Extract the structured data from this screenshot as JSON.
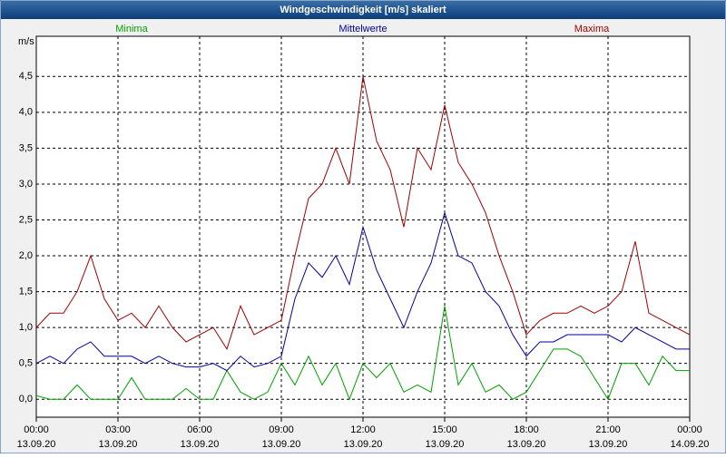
{
  "chart_data": {
    "type": "line",
    "title": "Windgeschwindigkeit [m/s] skaliert",
    "y_label": "m/s",
    "xlim": [
      0,
      24
    ],
    "ylim": [
      -0.25,
      5.06
    ],
    "xticks": [
      {
        "value": 0,
        "label": "00:00"
      },
      {
        "value": 3,
        "label": "03:00"
      },
      {
        "value": 6,
        "label": "06:00"
      },
      {
        "value": 9,
        "label": "09:00"
      },
      {
        "value": 12,
        "label": "12:00"
      },
      {
        "value": 15,
        "label": "15:00"
      },
      {
        "value": 18,
        "label": "18:00"
      },
      {
        "value": 21,
        "label": "21:00"
      },
      {
        "value": 24,
        "label": "00:00"
      }
    ],
    "xtick_dates": [
      "13.09.20",
      "13.09.20",
      "13.09.20",
      "13.09.20",
      "13.09.20",
      "13.09.20",
      "13.09.20",
      "13.09.20",
      "14.09.20"
    ],
    "yticks": [
      {
        "value": 0,
        "label": "0,0"
      },
      {
        "value": 0.5,
        "label": "0,5"
      },
      {
        "value": 1,
        "label": "1,0"
      },
      {
        "value": 1.5,
        "label": "1,5"
      },
      {
        "value": 2,
        "label": "2,0"
      },
      {
        "value": 2.5,
        "label": "2,5"
      },
      {
        "value": 3,
        "label": "3,0"
      },
      {
        "value": 3.5,
        "label": "3,5"
      },
      {
        "value": 4,
        "label": "4,0"
      },
      {
        "value": 4.5,
        "label": "4,5"
      }
    ],
    "grid": true,
    "x": [
      0,
      0.5,
      1,
      1.5,
      2,
      2.5,
      3,
      3.5,
      4,
      4.5,
      5,
      5.5,
      6,
      6.5,
      7,
      7.5,
      8,
      8.5,
      9,
      9.5,
      10,
      10.5,
      11,
      11.5,
      12,
      12.5,
      13,
      13.5,
      14,
      14.5,
      15,
      15.5,
      16,
      16.5,
      17,
      17.5,
      18,
      18.5,
      19,
      19.5,
      20,
      20.5,
      21,
      21.5,
      22,
      22.5,
      23,
      23.5,
      24
    ],
    "series": [
      {
        "name": "Minima",
        "color": "#00a000",
        "values": [
          0.05,
          0,
          0,
          0.2,
          0,
          0,
          0,
          0.3,
          0,
          0,
          0,
          0.15,
          0,
          0,
          0.4,
          0.1,
          0,
          0.1,
          0.5,
          0.2,
          0.6,
          0.2,
          0.5,
          0,
          0.5,
          0.3,
          0.5,
          0.1,
          0.2,
          0.1,
          1.3,
          0.2,
          0.5,
          0.1,
          0.2,
          0,
          0.1,
          0.4,
          0.7,
          0.7,
          0.6,
          0.3,
          0,
          0.5,
          0.5,
          0.2,
          0.6,
          0.4,
          0.4
        ]
      },
      {
        "name": "Mittelwerte",
        "color": "#0000a0",
        "values": [
          0.5,
          0.6,
          0.5,
          0.7,
          0.8,
          0.6,
          0.6,
          0.6,
          0.5,
          0.6,
          0.5,
          0.45,
          0.45,
          0.5,
          0.4,
          0.6,
          0.45,
          0.5,
          0.6,
          1.4,
          1.9,
          1.7,
          2.0,
          1.6,
          2.4,
          1.8,
          1.4,
          1.0,
          1.5,
          1.9,
          2.6,
          2.0,
          1.9,
          1.5,
          1.3,
          0.9,
          0.6,
          0.8,
          0.8,
          0.9,
          0.9,
          0.9,
          0.9,
          0.8,
          1.0,
          0.9,
          0.8,
          0.7,
          0.7
        ]
      },
      {
        "name": "Maxima",
        "color": "#a00000",
        "values": [
          1.0,
          1.2,
          1.2,
          1.5,
          2.0,
          1.4,
          1.1,
          1.2,
          1.0,
          1.3,
          1.0,
          0.8,
          0.9,
          1.0,
          0.7,
          1.3,
          0.9,
          1.0,
          1.1,
          2.0,
          2.8,
          3.0,
          3.5,
          3.0,
          4.5,
          3.6,
          3.2,
          2.4,
          3.5,
          3.2,
          4.1,
          3.3,
          3.0,
          2.6,
          2.0,
          1.5,
          0.9,
          1.1,
          1.2,
          1.2,
          1.3,
          1.2,
          1.3,
          1.5,
          2.2,
          1.2,
          1.1,
          1.0,
          0.9
        ]
      }
    ]
  }
}
